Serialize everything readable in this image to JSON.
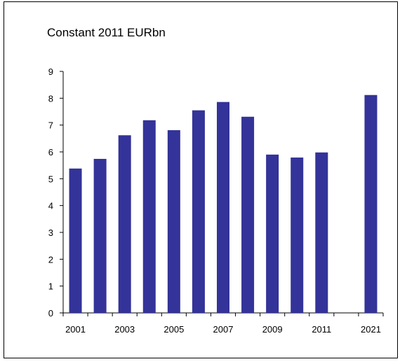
{
  "chart_data": {
    "type": "bar",
    "title": "Constant 2011 EURbn",
    "xlabel": "",
    "ylabel": "",
    "categories": [
      "2001",
      "2002",
      "2003",
      "2004",
      "2005",
      "2006",
      "2007",
      "2008",
      "2009",
      "2010",
      "2011",
      "2012",
      "2021"
    ],
    "x_tick_labels": [
      "2001",
      "2003",
      "2005",
      "2007",
      "2009",
      "2011",
      "2021"
    ],
    "values": [
      5.38,
      5.74,
      6.62,
      7.18,
      6.81,
      7.55,
      7.86,
      7.31,
      5.9,
      5.79,
      5.98,
      null,
      8.12
    ],
    "ylim": [
      0,
      9
    ],
    "y_ticks": [
      0,
      1,
      2,
      3,
      4,
      5,
      6,
      7,
      8,
      9
    ],
    "grid": false,
    "legend": "none",
    "bar_color": "#333399"
  }
}
